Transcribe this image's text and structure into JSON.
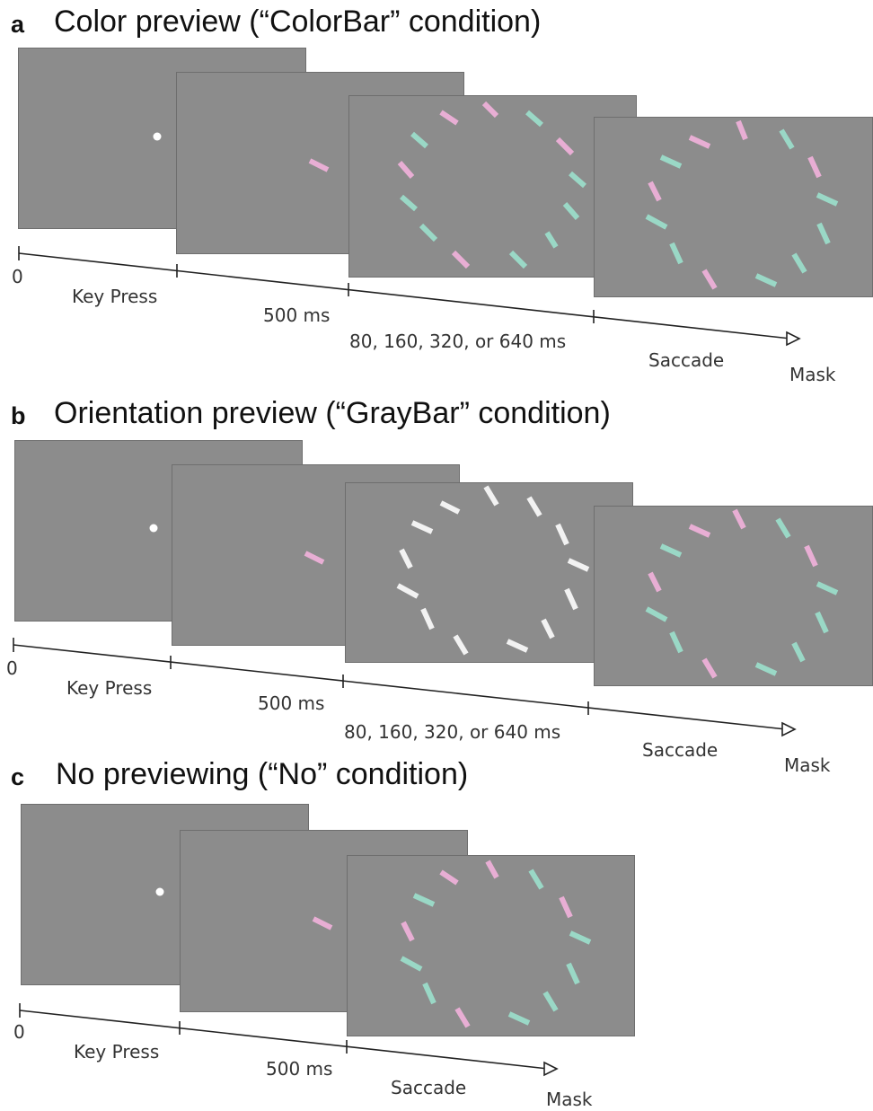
{
  "panels": [
    {
      "letter": "a",
      "title": "Color preview (“ColorBar” condition)",
      "timeline_labels": [
        "0",
        "Key Press",
        "500 ms",
        "80, 160, 320, or 640 ms",
        "Saccade",
        "Mask"
      ]
    },
    {
      "letter": "b",
      "title": "Orientation preview (“GrayBar” condition)",
      "timeline_labels": [
        "0",
        "Key Press",
        "500 ms",
        "80, 160, 320, or 640 ms",
        "Saccade",
        "Mask"
      ]
    },
    {
      "letter": "c",
      "title": "No previewing (“No” condition)",
      "timeline_labels": [
        "0",
        "Key Press",
        "500 ms",
        "Saccade",
        "Mask"
      ]
    }
  ],
  "colors": {
    "frame_gray": "#8c8c8c",
    "bar_pink": "#e8aed4",
    "bar_teal": "#9ad8c6",
    "bar_white": "#f2f2f2",
    "fixation_dot": "#ffffff"
  }
}
